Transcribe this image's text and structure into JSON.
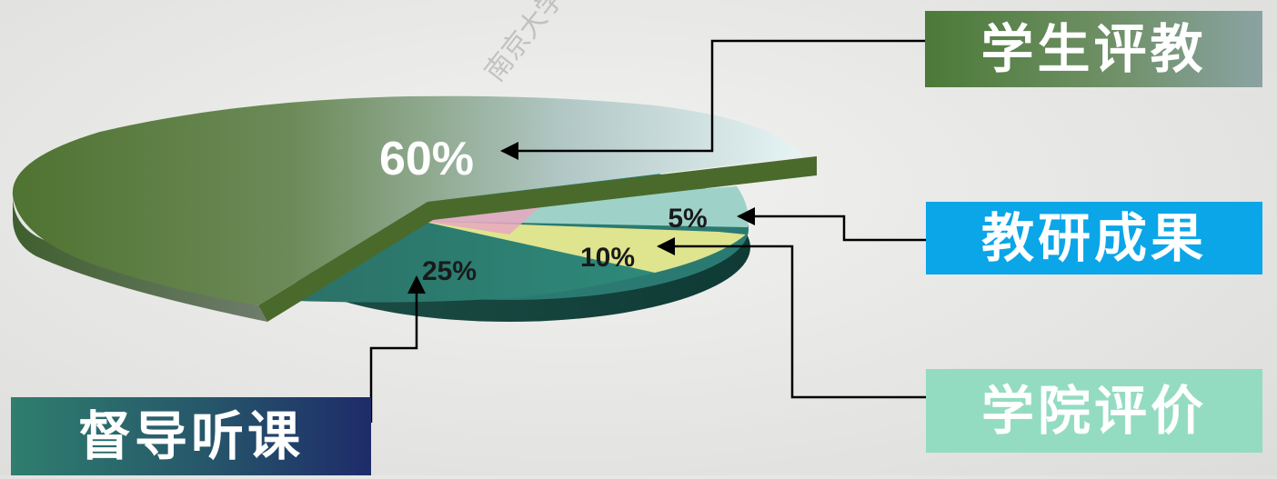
{
  "chart_data": {
    "type": "pie",
    "categories": [
      "学生评教",
      "教研成果",
      "学院评价",
      "督导听课"
    ],
    "values": [
      60,
      5,
      10,
      25
    ],
    "value_labels": [
      "60%",
      "5%",
      "10%",
      "25%"
    ],
    "legend_position": "callout boxes around pie",
    "colors": {
      "student": "#5a7d3a",
      "research": "#9ed2c8",
      "college": "#dfe48e",
      "supervisor": "#2e7f76",
      "thin_slice": "#e7a8c0",
      "student_box": "#5c8a45",
      "research_box": "#0aa6e8",
      "college_box": "#93dcc2",
      "supervisor_box": "#276470"
    }
  },
  "watermark": "南京大学教师教学发"
}
